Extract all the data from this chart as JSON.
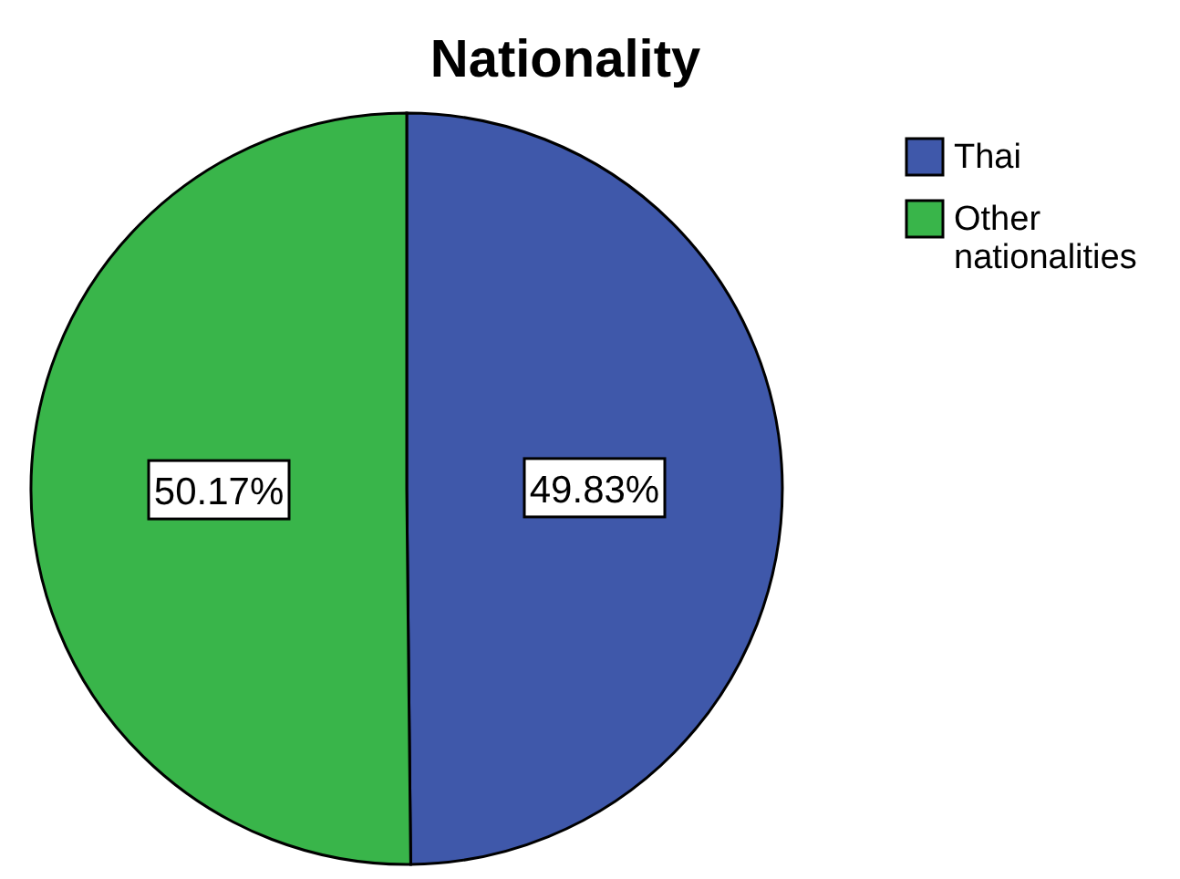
{
  "chart_data": {
    "type": "pie",
    "title": "Nationality",
    "categories": [
      "Thai",
      "Other nationalities"
    ],
    "values": [
      49.83,
      50.17
    ],
    "colors": [
      "#3f58aa",
      "#39b54a"
    ],
    "value_labels": [
      "49.83%",
      "50.17%"
    ],
    "legend": "top right"
  }
}
